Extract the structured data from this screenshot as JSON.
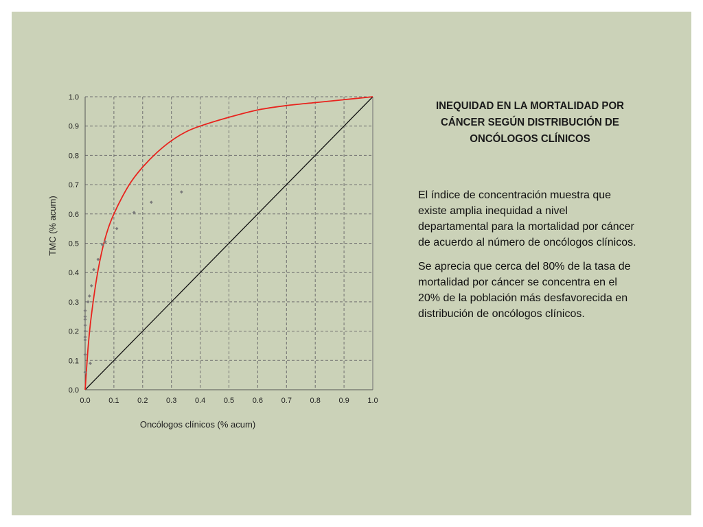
{
  "slide": {
    "heading": "INEQUIDAD EN LA MORTALIDAD POR CÁNCER SEGÚN DISTRIBUCIÓN DE ONCÓLOGOS CLÍNICOS",
    "paragraphs": [
      "El índice de concentración muestra que existe amplia inequidad  a nivel departamental para la mortalidad por cáncer de acuerdo al número de oncólogos clínicos.",
      "Se aprecia que cerca del 80% de la tasa de mortalidad por cáncer se concentra en el 20% de la población más desfavorecida en distribución de oncólogos clínicos."
    ],
    "colors": {
      "background": "#cbd2b8",
      "curve": "#e8231d",
      "equality_line": "#111111",
      "points": "#7a7a7a",
      "grid": "#6f6f6f"
    }
  },
  "chart_data": {
    "type": "scatter",
    "title": "",
    "xlabel": "Oncólogos clínicos (% acum)",
    "ylabel": "TMC (% acum)",
    "xlim": [
      0,
      1
    ],
    "ylim": [
      0,
      1
    ],
    "x_ticks": [
      "0.0",
      "0.1",
      "0.2",
      "0.3",
      "0.4",
      "0.5",
      "0.6",
      "0.7",
      "0.8",
      "0.9",
      "1.0"
    ],
    "y_ticks": [
      "0.0",
      "0.1",
      "0.2",
      "0.3",
      "0.4",
      "0.5",
      "0.6",
      "0.7",
      "0.8",
      "0.9",
      "1.0"
    ],
    "grid": true,
    "points": {
      "x": [
        0.0,
        0.0,
        0.0,
        0.0,
        0.0,
        0.0,
        0.0,
        0.0,
        0.0,
        0.01,
        0.015,
        0.018,
        0.022,
        0.03,
        0.045,
        0.06,
        0.07,
        0.11,
        0.17,
        0.23,
        0.335
      ],
      "y": [
        0.06,
        0.12,
        0.17,
        0.18,
        0.2,
        0.22,
        0.24,
        0.25,
        0.27,
        0.3,
        0.32,
        0.09,
        0.355,
        0.41,
        0.445,
        0.495,
        0.505,
        0.55,
        0.605,
        0.64,
        0.675
      ]
    },
    "curve": {
      "x": [
        0.0,
        0.01,
        0.02,
        0.04,
        0.06,
        0.08,
        0.1,
        0.13,
        0.16,
        0.2,
        0.25,
        0.3,
        0.35,
        0.4,
        0.5,
        0.6,
        0.7,
        0.8,
        0.9,
        1.0
      ],
      "y": [
        0.0,
        0.14,
        0.24,
        0.38,
        0.48,
        0.55,
        0.6,
        0.66,
        0.71,
        0.76,
        0.81,
        0.85,
        0.88,
        0.9,
        0.93,
        0.955,
        0.97,
        0.98,
        0.99,
        1.0
      ]
    },
    "equality_line": {
      "x": [
        0,
        1
      ],
      "y": [
        0,
        1
      ]
    }
  }
}
